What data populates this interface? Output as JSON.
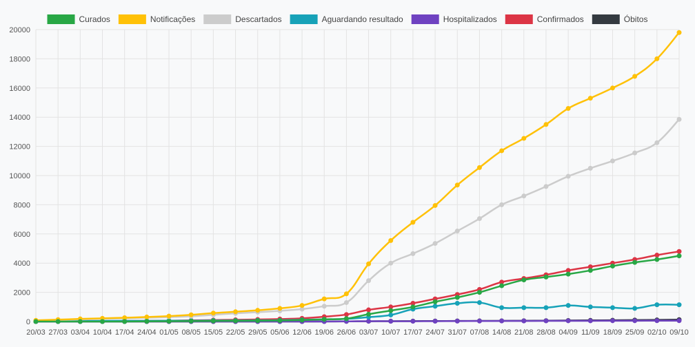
{
  "chart_data": {
    "type": "line",
    "title": "",
    "xlabel": "",
    "ylabel": "",
    "ylim": [
      0,
      20000
    ],
    "yticks": [
      0,
      2000,
      4000,
      6000,
      8000,
      10000,
      12000,
      14000,
      16000,
      18000,
      20000
    ],
    "grid": true,
    "legend_position": "top",
    "categories": [
      "20/03",
      "27/03",
      "03/04",
      "10/04",
      "17/04",
      "24/04",
      "01/05",
      "08/05",
      "15/05",
      "22/05",
      "29/05",
      "05/06",
      "12/06",
      "19/06",
      "26/06",
      "03/07",
      "10/07",
      "17/07",
      "24/07",
      "31/07",
      "07/08",
      "14/08",
      "21/08",
      "28/08",
      "04/09",
      "11/09",
      "18/09",
      "25/09",
      "02/10",
      "09/10"
    ],
    "series": [
      {
        "name": "Curados",
        "color": "#28a745",
        "values": [
          0,
          0,
          0,
          0,
          0,
          10,
          20,
          30,
          40,
          50,
          60,
          70,
          100,
          150,
          200,
          500,
          750,
          1000,
          1350,
          1650,
          2000,
          2450,
          2850,
          3050,
          3250,
          3500,
          3800,
          4050,
          4250,
          4500
        ]
      },
      {
        "name": "Notificações",
        "color": "#ffc107",
        "values": [
          80,
          130,
          180,
          220,
          260,
          310,
          370,
          460,
          580,
          670,
          770,
          900,
          1100,
          1550,
          1900,
          3950,
          5550,
          6800,
          7950,
          9350,
          10550,
          11700,
          12550,
          13500,
          14600,
          15300,
          16000,
          16800,
          18000,
          19800
        ]
      },
      {
        "name": "Descartados",
        "color": "#cccccc",
        "values": [
          50,
          90,
          140,
          180,
          220,
          260,
          300,
          360,
          460,
          560,
          640,
          730,
          850,
          1050,
          1300,
          2800,
          4000,
          4650,
          5350,
          6200,
          7050,
          8000,
          8600,
          9250,
          9950,
          10500,
          11000,
          11550,
          12250,
          13850
        ]
      },
      {
        "name": "Aguardando resultado",
        "color": "#17a2b8",
        "values": [
          20,
          30,
          40,
          40,
          50,
          50,
          60,
          60,
          70,
          70,
          80,
          90,
          120,
          150,
          180,
          300,
          450,
          850,
          1050,
          1250,
          1300,
          950,
          950,
          950,
          1100,
          1000,
          950,
          900,
          1150,
          1150
        ]
      },
      {
        "name": "Hospitalizados",
        "color": "#6f42c1",
        "values": [
          0,
          0,
          0,
          0,
          0,
          0,
          0,
          0,
          0,
          0,
          0,
          0,
          0,
          0,
          10,
          20,
          20,
          20,
          25,
          30,
          35,
          40,
          40,
          45,
          50,
          50,
          55,
          55,
          60,
          60
        ]
      },
      {
        "name": "Confirmados",
        "color": "#dc3545",
        "values": [
          5,
          10,
          20,
          30,
          40,
          50,
          60,
          80,
          100,
          120,
          140,
          170,
          220,
          330,
          480,
          800,
          1000,
          1250,
          1550,
          1850,
          2200,
          2700,
          2950,
          3200,
          3500,
          3750,
          4000,
          4250,
          4550,
          4800
        ]
      },
      {
        "name": "Óbitos",
        "color": "#343a40",
        "values": [
          0,
          0,
          0,
          0,
          0,
          0,
          0,
          0,
          0,
          0,
          0,
          0,
          0,
          5,
          10,
          20,
          25,
          30,
          35,
          40,
          45,
          50,
          55,
          60,
          70,
          80,
          90,
          100,
          110,
          130
        ]
      }
    ]
  }
}
